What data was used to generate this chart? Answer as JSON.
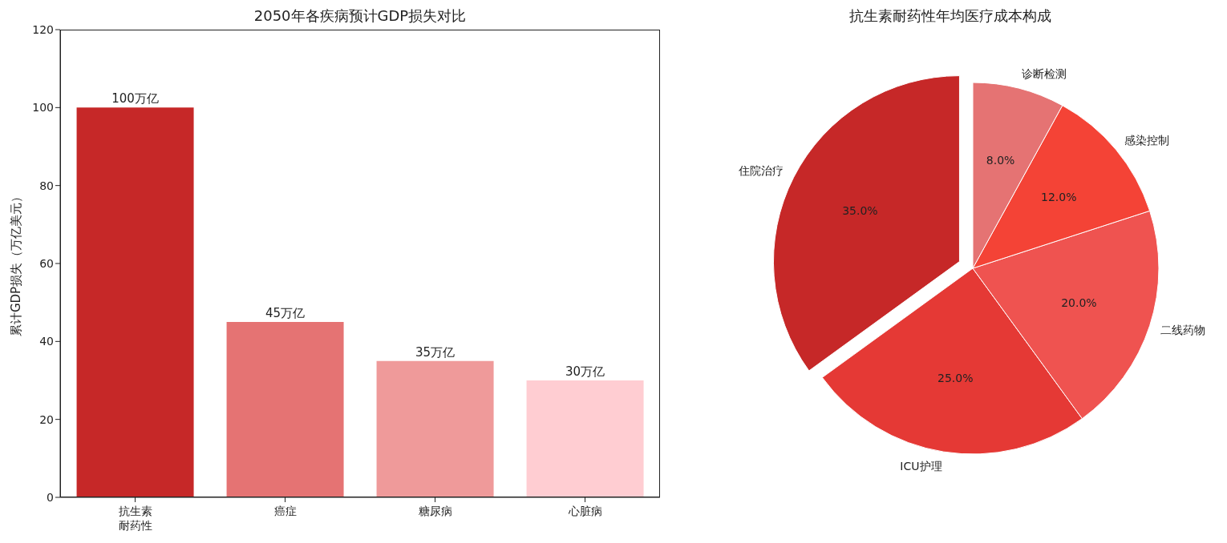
{
  "chart_data": [
    {
      "type": "bar",
      "title": "2050年各疾病预计GDP损失对比",
      "ylabel": "累计GDP损失（万亿美元）",
      "categories": [
        "抗生素耐药性",
        "癌症",
        "糖尿病",
        "心脏病"
      ],
      "values": [
        100,
        45,
        35,
        30
      ],
      "colors": [
        "#c62828",
        "#e57373",
        "#ef9a9a",
        "#ffcdd2"
      ],
      "value_labels": [
        "100万亿",
        "45万亿",
        "35万亿",
        "30万亿"
      ],
      "ylim": [
        0,
        120
      ],
      "yticks": [
        0,
        20,
        40,
        60,
        80,
        100,
        120
      ],
      "grid": false,
      "legend": false
    },
    {
      "type": "pie",
      "title": "抗生素耐药性年均医疗成本构成",
      "categories": [
        "住院治疗",
        "ICU护理",
        "二线药物",
        "感染控制",
        "诊断检测"
      ],
      "values": [
        35,
        25,
        20,
        12,
        8
      ],
      "colors": [
        "#c62828",
        "#e53935",
        "#ef5350",
        "#f44336",
        "#e57373"
      ],
      "value_labels": [
        "35.0%",
        "25.0%",
        "20.0%",
        "12.0%",
        "8.0%"
      ],
      "legend": false
    }
  ]
}
